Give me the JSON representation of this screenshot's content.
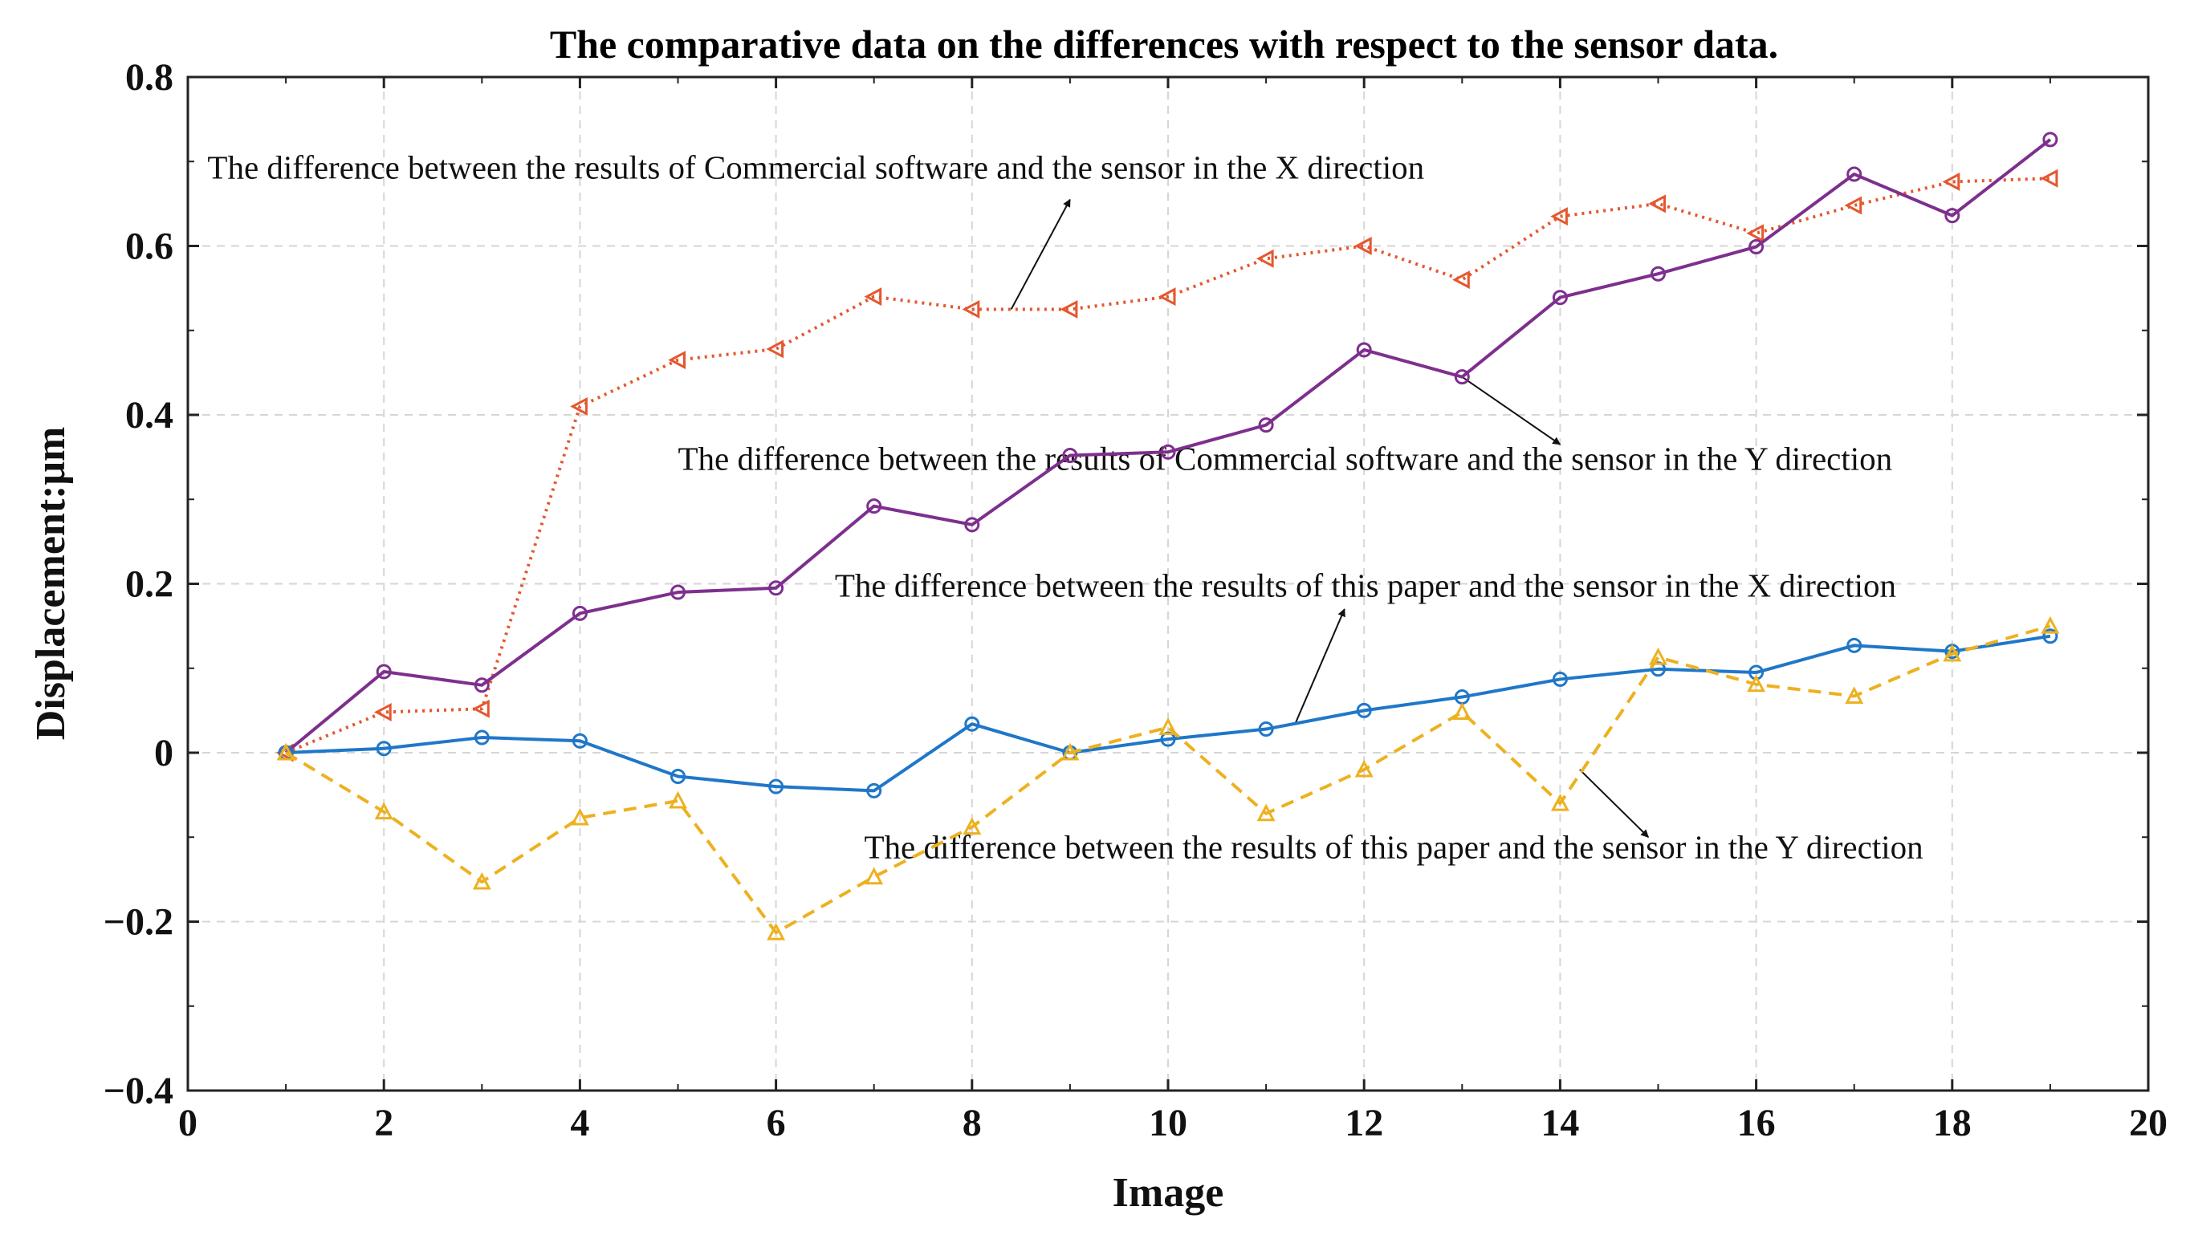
{
  "chart_data": {
    "type": "line",
    "title": "The comparative data on the differences with respect to the sensor data.",
    "xlabel": "Image",
    "ylabel": "Displacement:μm",
    "xlim": [
      0,
      20
    ],
    "ylim": [
      -0.4,
      0.8
    ],
    "grid": true,
    "xticks": [
      0,
      2,
      4,
      6,
      8,
      10,
      12,
      14,
      16,
      18,
      20
    ],
    "xtick_labels": [
      "0",
      "2",
      "4",
      "6",
      "8",
      "10",
      "12",
      "14",
      "16",
      "18",
      "20"
    ],
    "yticks": [
      -0.4,
      -0.2,
      0,
      0.2,
      0.4,
      0.6,
      0.8
    ],
    "ytick_labels": [
      "−0.4",
      "−0.2",
      "0",
      "0.2",
      "0.4",
      "0.6",
      "0.8"
    ],
    "x": [
      1,
      2,
      3,
      4,
      5,
      6,
      7,
      8,
      9,
      10,
      11,
      12,
      13,
      14,
      15,
      16,
      17,
      18,
      19
    ],
    "series": [
      {
        "name": "The difference between the results of Commercial software and the sensor in the X direction",
        "color": "#e4572e",
        "marker": "triangle-left",
        "line_style": "dotted",
        "values": [
          0,
          0.048,
          0.052,
          0.41,
          0.465,
          0.478,
          0.54,
          0.525,
          0.525,
          0.54,
          0.585,
          0.6,
          0.56,
          0.635,
          0.65,
          0.615,
          0.648,
          0.676,
          0.68
        ]
      },
      {
        "name": "The difference between the results of Commercial software and the sensor in the Y direction",
        "color": "#7e2f8e",
        "marker": "circle",
        "line_style": "solid",
        "values": [
          0,
          0.096,
          0.08,
          0.165,
          0.19,
          0.195,
          0.292,
          0.27,
          0.352,
          0.356,
          0.388,
          0.477,
          0.445,
          0.539,
          0.567,
          0.599,
          0.685,
          0.636,
          0.726
        ]
      },
      {
        "name": "The difference between the results of this paper and the sensor in the X direction",
        "color": "#1f77c8",
        "marker": "circle",
        "line_style": "solid",
        "values": [
          0,
          0.005,
          0.018,
          0.014,
          -0.028,
          -0.04,
          -0.045,
          0.034,
          0,
          0.016,
          0.028,
          0.05,
          0.066,
          0.087,
          0.099,
          0.095,
          0.127,
          0.12,
          0.138
        ]
      },
      {
        "name": "The difference between the results of this paper and the sensor in the Y direction",
        "color": "#edb120",
        "marker": "triangle-up",
        "line_style": "dashed",
        "values": [
          0,
          -0.07,
          -0.153,
          -0.077,
          -0.057,
          -0.213,
          -0.147,
          -0.088,
          0,
          0.03,
          -0.072,
          -0.02,
          0.048,
          -0.06,
          0.113,
          0.081,
          0.067,
          0.117,
          0.15
        ]
      }
    ],
    "annotations": [
      {
        "text": "The difference between the results of Commercial software and the sensor in the X direction",
        "arrow_from": [
          8.4,
          0.525
        ],
        "arrow_to": [
          9,
          0.655
        ],
        "text_at": [
          0.2,
          0.68
        ],
        "anchor": "start"
      },
      {
        "text": "The difference between the results of Commercial software and the sensor in the Y direction",
        "arrow_from": [
          13,
          0.445
        ],
        "arrow_to": [
          14,
          0.365
        ],
        "text_at": [
          5,
          0.335
        ],
        "anchor": "start"
      },
      {
        "text": "The difference between the results of this paper and the sensor in the X direction",
        "arrow_from": [
          11.3,
          0.035
        ],
        "arrow_to": [
          11.8,
          0.17
        ],
        "text_at": [
          6.6,
          0.185
        ],
        "anchor": "start"
      },
      {
        "text": "The difference between the results of this paper and the sensor in the Y direction",
        "arrow_from": [
          14.2,
          -0.02
        ],
        "arrow_to": [
          14.9,
          -0.1
        ],
        "text_at": [
          6.9,
          -0.125
        ],
        "anchor": "start"
      }
    ]
  }
}
